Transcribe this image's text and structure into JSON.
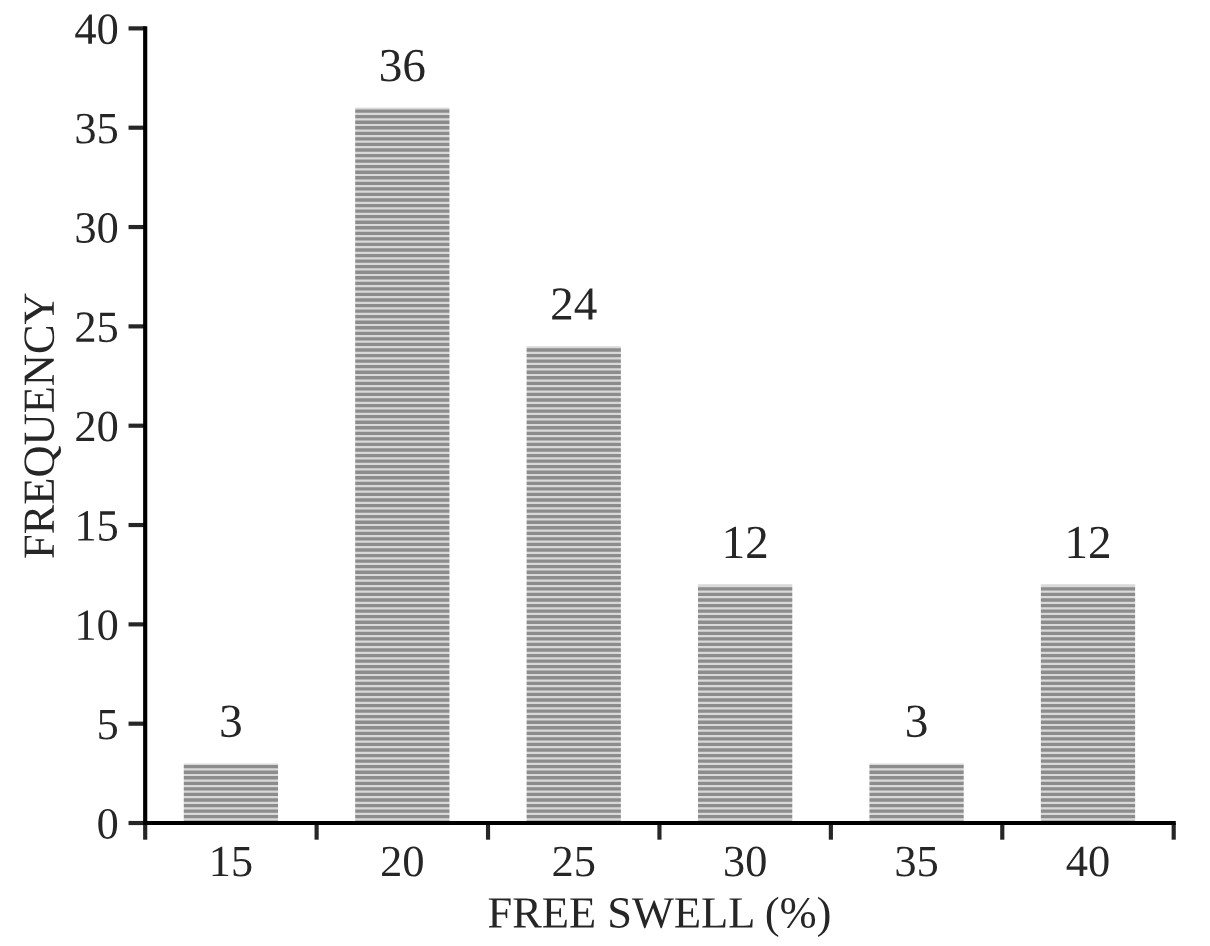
{
  "chart_data": {
    "type": "bar",
    "xlabel": "FREE SWELL (%)",
    "ylabel": "FREQUENCY",
    "categories": [
      "15",
      "20",
      "25",
      "30",
      "35",
      "40"
    ],
    "values": [
      3,
      36,
      24,
      12,
      3,
      12
    ],
    "color": "#8c8c8c",
    "ylim": [
      0,
      40
    ],
    "yticks": [
      0,
      5,
      10,
      15,
      20,
      25,
      30,
      35,
      40
    ],
    "data_labels": true,
    "grid": false,
    "legend": false
  }
}
